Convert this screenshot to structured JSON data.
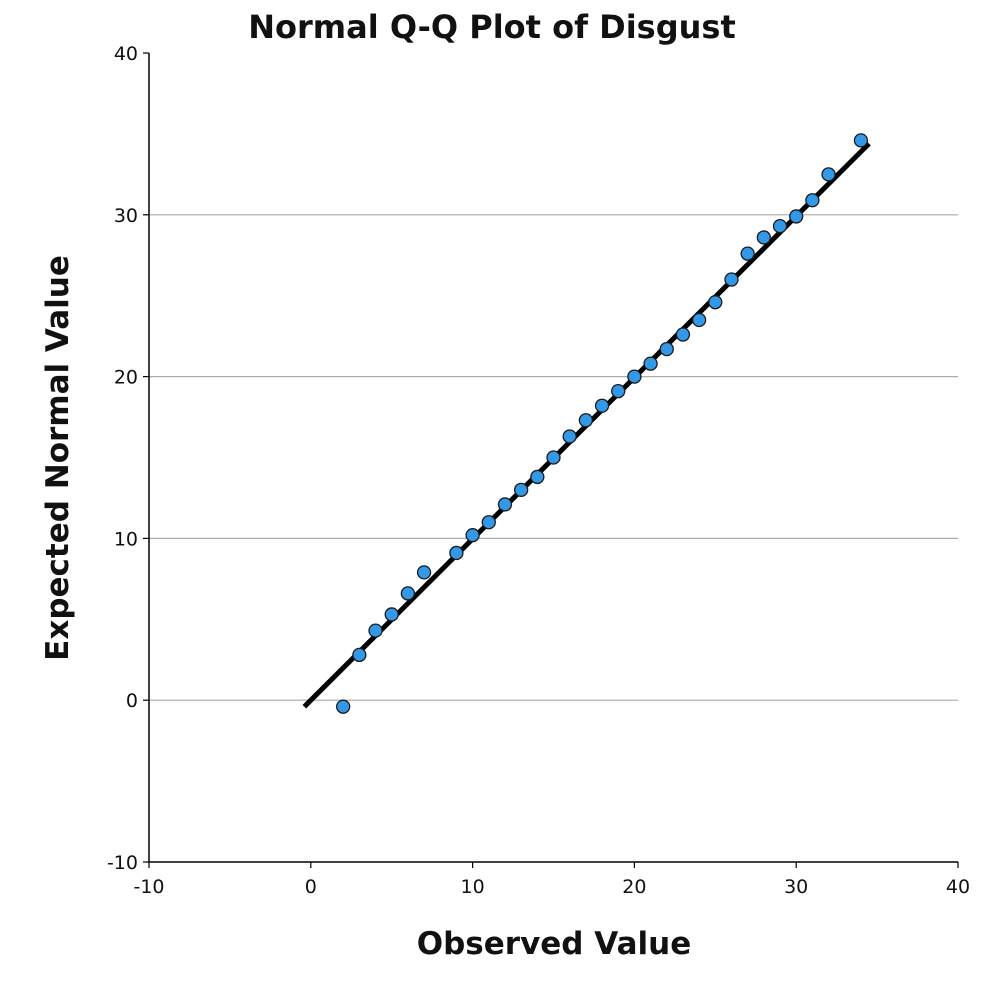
{
  "chart_data": {
    "type": "scatter",
    "title": "Normal Q-Q Plot of Disgust",
    "xlabel": "Observed Value",
    "ylabel": "Expected Normal Value",
    "xlim": [
      -10,
      40
    ],
    "ylim": [
      -10,
      40
    ],
    "xticks": [
      "-10",
      "0",
      "10",
      "20",
      "30",
      "40"
    ],
    "yticks": [
      "-10",
      "0",
      "10",
      "20",
      "30",
      "40"
    ],
    "grid": "horizontal",
    "marker_color": "#3399e6",
    "line_color": "#000000",
    "reference_line": {
      "x": [
        -0.4,
        34.5
      ],
      "y": [
        -0.4,
        34.4
      ]
    },
    "points": [
      {
        "x": 2,
        "y": -0.4
      },
      {
        "x": 3,
        "y": 2.8
      },
      {
        "x": 4,
        "y": 4.3
      },
      {
        "x": 5,
        "y": 5.3
      },
      {
        "x": 6,
        "y": 6.6
      },
      {
        "x": 7,
        "y": 7.9
      },
      {
        "x": 9,
        "y": 9.1
      },
      {
        "x": 10,
        "y": 10.2
      },
      {
        "x": 11,
        "y": 11.0
      },
      {
        "x": 12,
        "y": 12.1
      },
      {
        "x": 13,
        "y": 13.0
      },
      {
        "x": 14,
        "y": 13.8
      },
      {
        "x": 15,
        "y": 15.0
      },
      {
        "x": 16,
        "y": 16.3
      },
      {
        "x": 17,
        "y": 17.3
      },
      {
        "x": 18,
        "y": 18.2
      },
      {
        "x": 19,
        "y": 19.1
      },
      {
        "x": 20,
        "y": 20.0
      },
      {
        "x": 21,
        "y": 20.8
      },
      {
        "x": 22,
        "y": 21.7
      },
      {
        "x": 23,
        "y": 22.6
      },
      {
        "x": 24,
        "y": 23.5
      },
      {
        "x": 25,
        "y": 24.6
      },
      {
        "x": 26,
        "y": 26.0
      },
      {
        "x": 27,
        "y": 27.6
      },
      {
        "x": 28,
        "y": 28.6
      },
      {
        "x": 29,
        "y": 29.3
      },
      {
        "x": 30,
        "y": 29.9
      },
      {
        "x": 31,
        "y": 30.9
      },
      {
        "x": 32,
        "y": 32.5
      },
      {
        "x": 34,
        "y": 34.6
      }
    ]
  }
}
